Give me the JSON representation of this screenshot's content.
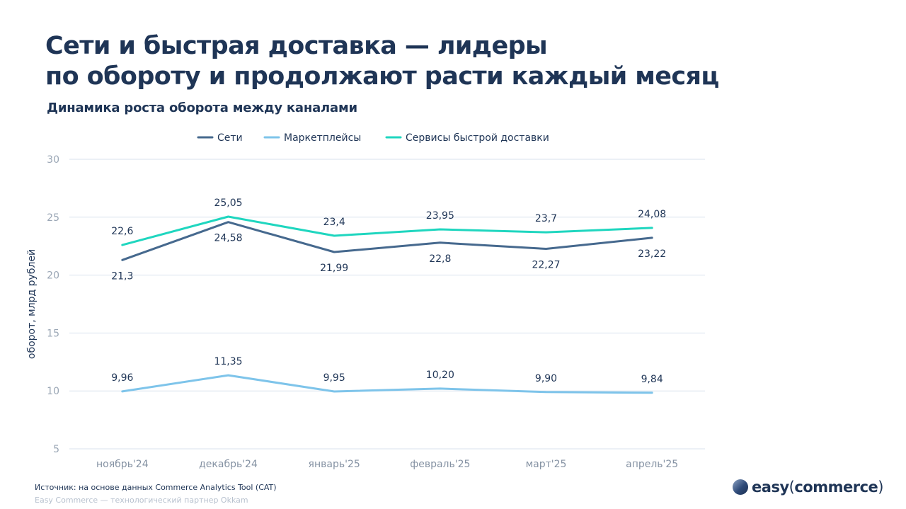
{
  "title_line1": "Сети и быстрая доставка — лидеры",
  "title_line2": "по обороту и продолжают расти каждый месяц",
  "footer": {
    "source": "Источник: на основе данных Commerce Analytics Tool (CAT)",
    "partner": "Easy Commerce — технологический партнер Okkam"
  },
  "logo": {
    "word1": "easy",
    "open": "(",
    "word2": "commerce",
    "close": ")"
  },
  "chart_data": {
    "type": "line",
    "title": "Динамика роста оборота между каналами",
    "ylabel": "оборот, млрд рублей",
    "xlabel": "",
    "ylim": [
      5,
      30
    ],
    "yticks": [
      30,
      25,
      20,
      15,
      10,
      5
    ],
    "grid": true,
    "legend_position": "top-center",
    "categories": [
      "ноябрь'24",
      "декабрь'24",
      "январь'25",
      "февраль'25",
      "март'25",
      "апрель'25"
    ],
    "series": [
      {
        "name": "Сети",
        "color": "#46698e",
        "values": [
          21.3,
          24.58,
          21.99,
          22.8,
          22.27,
          23.22
        ],
        "labels": [
          "21,3",
          "24,58",
          "21,99",
          "22,8",
          "22,27",
          "23,22"
        ],
        "label_position": "below"
      },
      {
        "name": "Маркетплейсы",
        "color": "#7ec4ea",
        "values": [
          9.96,
          11.35,
          9.95,
          10.2,
          9.9,
          9.84
        ],
        "labels": [
          "9,96",
          "11,35",
          "9,95",
          "10,20",
          "9,90",
          "9,84"
        ],
        "label_position": "above"
      },
      {
        "name": "Сервисы быстрой доставки",
        "color": "#1fd6bf",
        "values": [
          22.6,
          25.05,
          23.4,
          23.95,
          23.7,
          24.08
        ],
        "labels": [
          "22,6",
          "25,05",
          "23,4",
          "23,95",
          "23,7",
          "24,08"
        ],
        "label_position": "above"
      }
    ]
  }
}
